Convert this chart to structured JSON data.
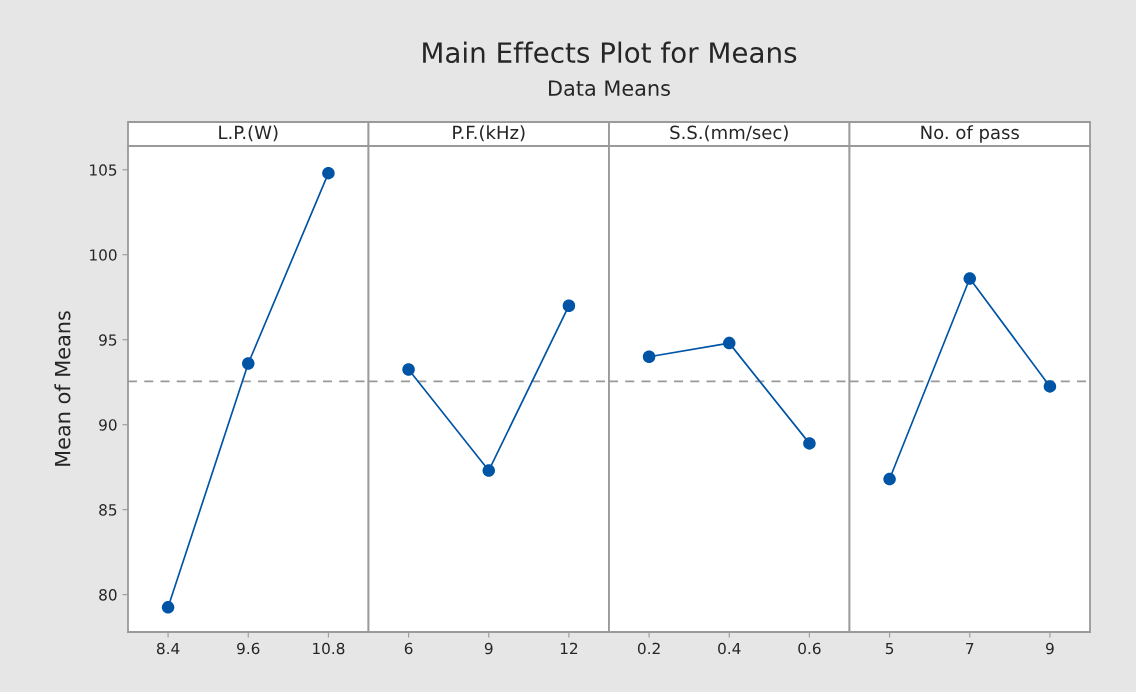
{
  "chart_data": [
    {
      "type": "line",
      "title": "L.P.(W)",
      "ylabel": "Mean of Means",
      "annotations": [
        "Main Effects Plot for Means",
        "Data Means"
      ],
      "categories": [
        "8.4",
        "9.6",
        "10.8"
      ],
      "series": [
        {
          "color": "#0054a6",
          "values": [
            79.25,
            93.6,
            104.8
          ]
        }
      ],
      "ylim": [
        77.8,
        106.4
      ],
      "yticks": [
        80,
        85,
        90,
        95,
        100,
        105
      ],
      "marker": "circle",
      "line_style": "solid",
      "grid": false,
      "ref_lines": [
        {
          "axis": "y",
          "value": 92.55,
          "color": "#999999",
          "line_style": "dashed"
        }
      ]
    },
    {
      "type": "line",
      "title": "P.F.(kHz)",
      "categories": [
        "6",
        "9",
        "12"
      ],
      "series": [
        {
          "color": "#0054a6",
          "values": [
            93.25,
            87.3,
            97.0
          ]
        }
      ],
      "ylim": [
        77.8,
        106.4
      ],
      "tick_labels": "x",
      "marker": "circle",
      "line_style": "solid",
      "grid": false,
      "ref_lines": [
        {
          "axis": "y",
          "value": 92.55,
          "color": "#999999",
          "line_style": "dashed"
        }
      ]
    },
    {
      "type": "line",
      "title": "S.S.(mm/sec)",
      "categories": [
        "0.2",
        "0.4",
        "0.6"
      ],
      "series": [
        {
          "color": "#0054a6",
          "values": [
            94.0,
            94.8,
            88.9
          ]
        }
      ],
      "ylim": [
        77.8,
        106.4
      ],
      "tick_labels": "x",
      "marker": "circle",
      "line_style": "solid",
      "grid": false,
      "ref_lines": [
        {
          "axis": "y",
          "value": 92.55,
          "color": "#999999",
          "line_style": "dashed"
        }
      ]
    },
    {
      "type": "line",
      "title": "No. of pass",
      "categories": [
        "5",
        "7",
        "9"
      ],
      "series": [
        {
          "color": "#0054a6",
          "values": [
            86.8,
            98.6,
            92.25
          ]
        }
      ],
      "ylim": [
        77.8,
        106.4
      ],
      "tick_labels": "x",
      "marker": "circle",
      "line_style": "solid",
      "grid": false,
      "ref_lines": [
        {
          "axis": "y",
          "value": 92.55,
          "color": "#999999",
          "line_style": "dashed"
        }
      ]
    }
  ]
}
